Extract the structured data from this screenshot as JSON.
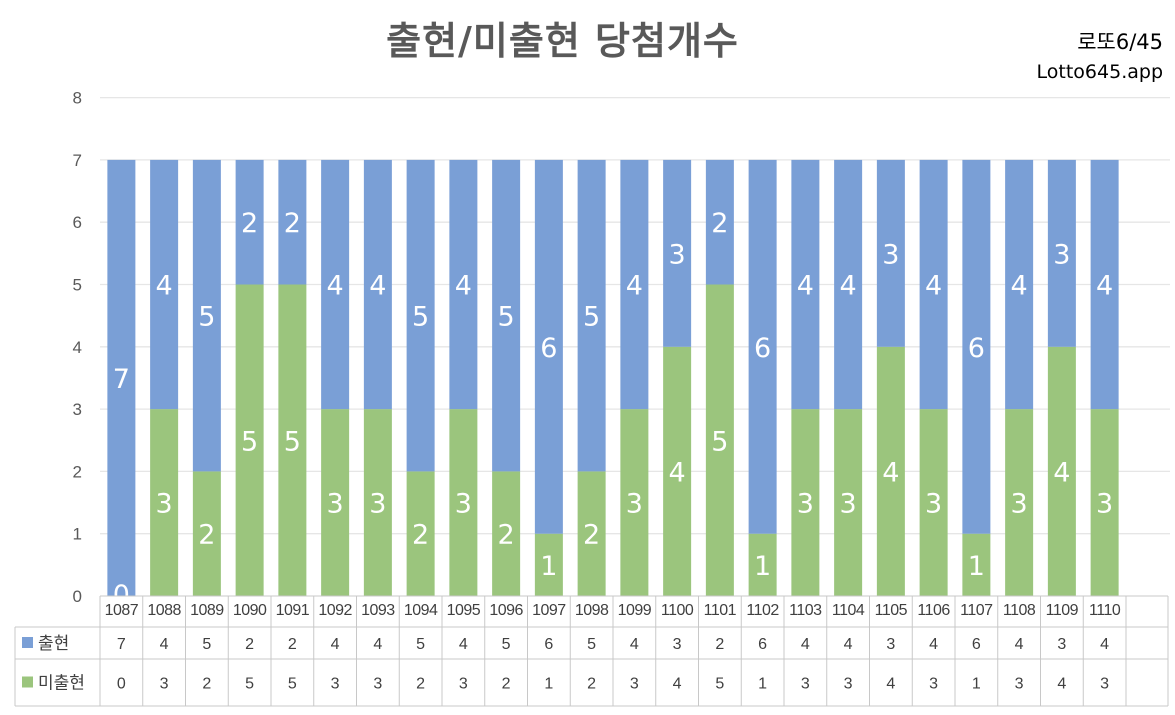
{
  "header": {
    "title": "출현/미출현 당첨개수",
    "brand_line1": "로또6/45",
    "brand_line2": "Lotto645.app"
  },
  "colors": {
    "appeared": "#7a9fd6",
    "not_appeared": "#9bc57d",
    "grid": "#e6e6e6",
    "table_border": "#c8c8c8"
  },
  "chart_data": {
    "type": "bar",
    "stacked": true,
    "title": "출현/미출현 당첨개수",
    "xlabel": "",
    "ylabel": "",
    "ylim": [
      0,
      8
    ],
    "yticks": [
      0,
      1,
      2,
      3,
      4,
      5,
      6,
      7,
      8
    ],
    "grid": true,
    "legend": "data-table",
    "categories": [
      "1087",
      "1088",
      "1089",
      "1090",
      "1091",
      "1092",
      "1093",
      "1094",
      "1095",
      "1096",
      "1097",
      "1098",
      "1099",
      "1100",
      "1101",
      "1102",
      "1103",
      "1104",
      "1105",
      "1106",
      "1107",
      "1108",
      "1109",
      "1110"
    ],
    "series": [
      {
        "name": "미출현",
        "color": "#9bc57d",
        "values": [
          0,
          3,
          2,
          5,
          5,
          3,
          3,
          2,
          3,
          2,
          1,
          2,
          3,
          4,
          5,
          1,
          3,
          3,
          4,
          3,
          1,
          3,
          4,
          3
        ]
      },
      {
        "name": "출현",
        "color": "#7a9fd6",
        "values": [
          7,
          4,
          5,
          2,
          2,
          4,
          4,
          5,
          4,
          5,
          6,
          5,
          4,
          3,
          2,
          6,
          4,
          4,
          3,
          4,
          6,
          4,
          3,
          4
        ]
      }
    ]
  }
}
